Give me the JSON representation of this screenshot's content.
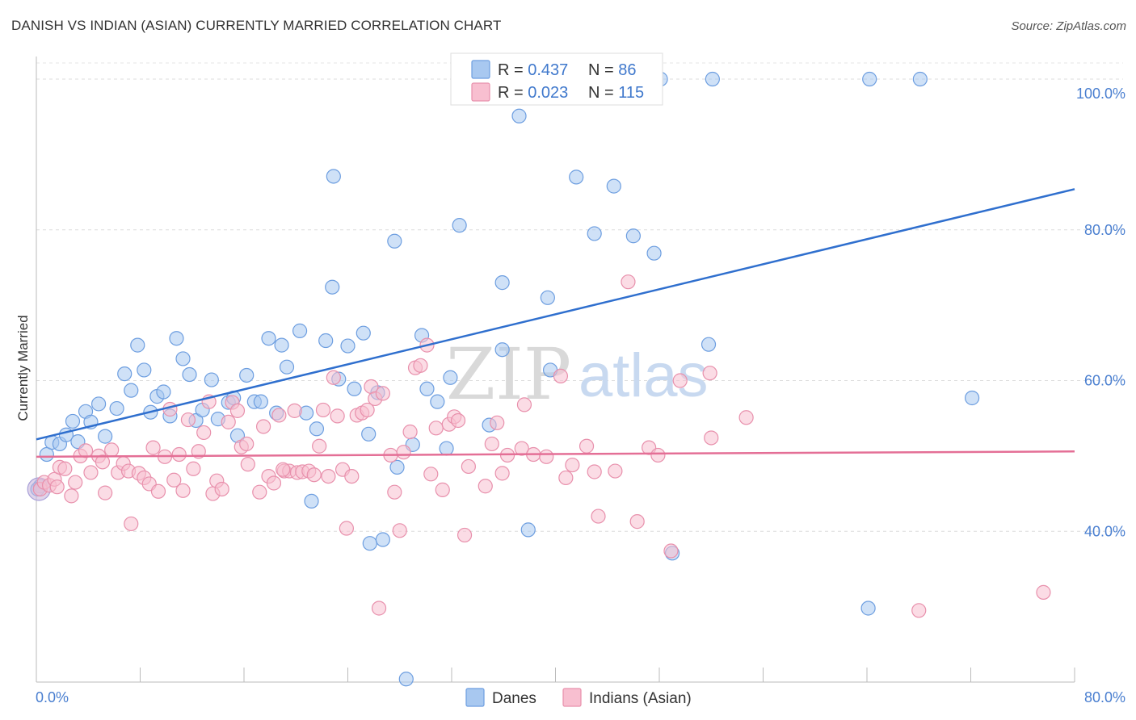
{
  "title": "DANISH VS INDIAN (ASIAN) CURRENTLY MARRIED CORRELATION CHART",
  "source": "Source: ZipAtlas.com",
  "watermark": {
    "zip": "ZIP",
    "atlas": "atlas"
  },
  "legend_top": [
    {
      "r_label": "R = ",
      "r_value": "0.437",
      "n_label": "N = ",
      "n_value": "86",
      "color": "#a8c8f0",
      "stroke": "#6d9ee0"
    },
    {
      "r_label": "R = ",
      "r_value": "0.023",
      "n_label": "N = ",
      "n_value": "115",
      "color": "#f8bfd0",
      "stroke": "#e890ac"
    }
  ],
  "legend_bottom": [
    "Danes",
    "Indians (Asian)"
  ],
  "chart_data": {
    "type": "scatter",
    "title": "DANISH VS INDIAN (ASIAN) CURRENTLY MARRIED CORRELATION CHART",
    "xlabel": "",
    "ylabel": "Currently Married",
    "xlim": [
      0,
      80
    ],
    "ylim": [
      20,
      103
    ],
    "x_tick_labels": [
      "0.0%",
      "80.0%"
    ],
    "y_ticks": [
      40,
      60,
      80,
      100
    ],
    "y_tick_labels": [
      "40.0%",
      "60.0%",
      "80.0%",
      "100.0%"
    ],
    "grid": true,
    "legend_position": "top-center",
    "series": [
      {
        "name": "Danes",
        "color": "#6d9ee0",
        "fill": "#a8c8f0",
        "line_color": "#2f6fce",
        "trend": {
          "x": [
            0,
            80
          ],
          "y": [
            52.2,
            85.4
          ]
        },
        "points": [
          [
            0.3,
            46.0
          ],
          [
            0.8,
            50.2
          ],
          [
            1.2,
            51.8
          ],
          [
            1.8,
            51.6
          ],
          [
            2.3,
            52.8
          ],
          [
            2.8,
            54.6
          ],
          [
            3.2,
            51.9
          ],
          [
            3.8,
            55.9
          ],
          [
            4.2,
            54.5
          ],
          [
            4.8,
            56.9
          ],
          [
            5.3,
            52.6
          ],
          [
            6.2,
            56.3
          ],
          [
            6.8,
            60.9
          ],
          [
            7.3,
            58.7
          ],
          [
            7.8,
            64.7
          ],
          [
            8.3,
            61.4
          ],
          [
            8.8,
            55.8
          ],
          [
            9.3,
            57.9
          ],
          [
            9.8,
            58.5
          ],
          [
            10.3,
            55.3
          ],
          [
            10.8,
            65.6
          ],
          [
            11.3,
            62.9
          ],
          [
            11.8,
            60.8
          ],
          [
            12.3,
            54.7
          ],
          [
            12.8,
            56.1
          ],
          [
            13.5,
            60.1
          ],
          [
            14.0,
            54.9
          ],
          [
            14.8,
            57.1
          ],
          [
            15.2,
            57.7
          ],
          [
            15.5,
            52.7
          ],
          [
            16.2,
            60.7
          ],
          [
            16.8,
            57.2
          ],
          [
            17.3,
            57.2
          ],
          [
            17.9,
            65.6
          ],
          [
            18.5,
            55.7
          ],
          [
            18.9,
            64.7
          ],
          [
            19.3,
            61.8
          ],
          [
            20.3,
            66.6
          ],
          [
            20.8,
            55.7
          ],
          [
            21.2,
            44.0
          ],
          [
            21.6,
            53.6
          ],
          [
            22.3,
            65.3
          ],
          [
            22.8,
            72.4
          ],
          [
            22.9,
            87.1
          ],
          [
            23.3,
            60.2
          ],
          [
            24.0,
            64.6
          ],
          [
            24.5,
            58.9
          ],
          [
            25.2,
            66.3
          ],
          [
            25.6,
            52.9
          ],
          [
            25.7,
            38.4
          ],
          [
            26.3,
            58.4
          ],
          [
            26.7,
            38.9
          ],
          [
            27.6,
            78.5
          ],
          [
            27.8,
            48.5
          ],
          [
            28.5,
            20.4
          ],
          [
            29.0,
            51.5
          ],
          [
            29.7,
            66.0
          ],
          [
            30.1,
            58.9
          ],
          [
            30.9,
            57.2
          ],
          [
            31.6,
            51.0
          ],
          [
            31.9,
            60.4
          ],
          [
            32.6,
            80.6
          ],
          [
            34.9,
            54.1
          ],
          [
            35.9,
            64.1
          ],
          [
            35.9,
            73.0
          ],
          [
            37.2,
            95.1
          ],
          [
            37.5,
            99.6
          ],
          [
            37.9,
            40.2
          ],
          [
            38.1,
            100.0
          ],
          [
            39.4,
            71.0
          ],
          [
            39.6,
            61.4
          ],
          [
            41.6,
            87.0
          ],
          [
            43.0,
            79.5
          ],
          [
            44.5,
            85.8
          ],
          [
            44.6,
            99.8
          ],
          [
            46.0,
            79.2
          ],
          [
            47.6,
            76.9
          ],
          [
            48.1,
            100.0
          ],
          [
            49.0,
            37.1
          ],
          [
            51.8,
            64.8
          ],
          [
            52.1,
            100.0
          ],
          [
            64.1,
            29.8
          ],
          [
            64.2,
            100.0
          ],
          [
            68.1,
            100.0
          ],
          [
            72.1,
            57.7
          ],
          [
            0.1,
            45.6
          ]
        ]
      },
      {
        "name": "Indians (Asian)",
        "color": "#e890ac",
        "fill": "#f8bfd0",
        "line_color": "#e46f96",
        "trend": {
          "x": [
            0,
            80
          ],
          "y": [
            49.9,
            50.6
          ]
        },
        "points": [
          [
            0.3,
            45.6
          ],
          [
            0.6,
            46.5
          ],
          [
            1.0,
            46.1
          ],
          [
            1.4,
            46.9
          ],
          [
            1.8,
            48.5
          ],
          [
            2.2,
            48.3
          ],
          [
            2.7,
            44.7
          ],
          [
            3.0,
            46.5
          ],
          [
            3.4,
            50.0
          ],
          [
            3.8,
            50.7
          ],
          [
            4.2,
            47.8
          ],
          [
            4.8,
            50.0
          ],
          [
            5.1,
            49.2
          ],
          [
            5.3,
            45.1
          ],
          [
            5.8,
            50.8
          ],
          [
            6.3,
            47.8
          ],
          [
            6.7,
            49.0
          ],
          [
            7.1,
            48.0
          ],
          [
            7.3,
            41.0
          ],
          [
            7.9,
            47.7
          ],
          [
            8.3,
            47.1
          ],
          [
            8.7,
            46.3
          ],
          [
            9.0,
            51.1
          ],
          [
            9.4,
            45.3
          ],
          [
            9.9,
            49.9
          ],
          [
            10.3,
            56.2
          ],
          [
            10.6,
            46.8
          ],
          [
            11.3,
            45.4
          ],
          [
            11.7,
            54.8
          ],
          [
            12.1,
            48.3
          ],
          [
            12.5,
            50.6
          ],
          [
            12.9,
            53.1
          ],
          [
            13.3,
            57.2
          ],
          [
            13.6,
            45.0
          ],
          [
            13.9,
            46.7
          ],
          [
            14.3,
            45.6
          ],
          [
            14.8,
            54.5
          ],
          [
            15.1,
            57.1
          ],
          [
            15.5,
            56.0
          ],
          [
            15.8,
            51.2
          ],
          [
            16.2,
            51.6
          ],
          [
            16.3,
            48.9
          ],
          [
            17.2,
            45.2
          ],
          [
            17.5,
            53.9
          ],
          [
            17.9,
            47.3
          ],
          [
            18.3,
            46.4
          ],
          [
            18.7,
            55.4
          ],
          [
            19.1,
            48.0
          ],
          [
            19.5,
            48.0
          ],
          [
            19.9,
            56.0
          ],
          [
            20.1,
            47.8
          ],
          [
            20.5,
            47.9
          ],
          [
            21.0,
            48.0
          ],
          [
            21.4,
            47.5
          ],
          [
            21.8,
            51.3
          ],
          [
            22.1,
            56.1
          ],
          [
            22.5,
            47.3
          ],
          [
            22.9,
            60.4
          ],
          [
            23.2,
            55.3
          ],
          [
            23.6,
            48.2
          ],
          [
            23.9,
            40.4
          ],
          [
            24.3,
            47.3
          ],
          [
            24.7,
            55.4
          ],
          [
            25.1,
            55.7
          ],
          [
            25.5,
            56.1
          ],
          [
            25.8,
            59.2
          ],
          [
            26.1,
            57.6
          ],
          [
            26.4,
            29.8
          ],
          [
            26.7,
            58.3
          ],
          [
            27.3,
            50.1
          ],
          [
            27.6,
            45.2
          ],
          [
            28.0,
            40.1
          ],
          [
            28.3,
            50.5
          ],
          [
            28.8,
            53.2
          ],
          [
            29.2,
            61.7
          ],
          [
            29.6,
            62.0
          ],
          [
            30.1,
            64.7
          ],
          [
            30.4,
            47.6
          ],
          [
            30.8,
            53.7
          ],
          [
            31.3,
            45.5
          ],
          [
            31.8,
            54.2
          ],
          [
            32.2,
            55.2
          ],
          [
            32.5,
            54.7
          ],
          [
            33.0,
            39.5
          ],
          [
            33.3,
            48.6
          ],
          [
            34.6,
            46.0
          ],
          [
            35.1,
            51.6
          ],
          [
            35.5,
            54.4
          ],
          [
            35.9,
            47.7
          ],
          [
            36.3,
            50.1
          ],
          [
            37.4,
            51.0
          ],
          [
            37.6,
            56.8
          ],
          [
            38.3,
            50.2
          ],
          [
            39.3,
            49.9
          ],
          [
            40.4,
            60.6
          ],
          [
            40.8,
            47.1
          ],
          [
            41.3,
            48.8
          ],
          [
            42.4,
            51.3
          ],
          [
            43.0,
            47.9
          ],
          [
            43.3,
            42.0
          ],
          [
            44.6,
            48.0
          ],
          [
            45.6,
            73.1
          ],
          [
            46.3,
            41.3
          ],
          [
            47.2,
            51.1
          ],
          [
            47.9,
            50.1
          ],
          [
            48.9,
            37.4
          ],
          [
            49.6,
            60.0
          ],
          [
            51.9,
            61.0
          ],
          [
            52.0,
            52.4
          ],
          [
            54.7,
            55.1
          ],
          [
            68.0,
            29.5
          ],
          [
            77.6,
            31.9
          ],
          [
            1.6,
            45.9
          ],
          [
            11.0,
            50.2
          ],
          [
            19.0,
            48.2
          ]
        ]
      }
    ]
  }
}
